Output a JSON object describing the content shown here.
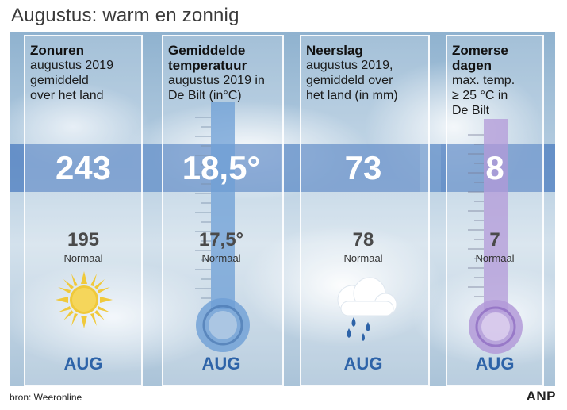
{
  "title": "Augustus: warm en zonnig",
  "columns": [
    {
      "heading": "Zonuren",
      "sub_lines": [
        "augustus 2019",
        "gemiddeld",
        "over het land"
      ],
      "value": "243",
      "normal_value": "195",
      "normal_label": "Normaal",
      "month": "AUG",
      "icon": "sun-icon"
    },
    {
      "heading_lines": [
        "Gemiddelde",
        "temperatuur"
      ],
      "sub_lines": [
        "augustus 2019 in",
        "De Bilt (in°C)"
      ],
      "value": "18,5°",
      "normal_value": "17,5°",
      "normal_label": "Normaal",
      "month": "AUG",
      "icon": "thermometer-icon"
    },
    {
      "heading": "Neerslag",
      "sub_lines": [
        "augustus 2019,",
        "gemiddeld over",
        "het land (in mm)"
      ],
      "value": "73",
      "normal_value": "78",
      "normal_label": "Normaal",
      "month": "AUG",
      "icon": "rain-cloud-icon"
    },
    {
      "heading_lines": [
        "Zomerse",
        "dagen"
      ],
      "sub_lines": [
        "max. temp.",
        "≥ 25 °C in",
        "De Bilt"
      ],
      "value": "8",
      "normal_value": "7",
      "normal_label": "Normaal",
      "month": "AUG",
      "icon": "thermometer-icon"
    }
  ],
  "footer": {
    "source": "bron: Weeronline",
    "logo": "ANP"
  },
  "colors": {
    "band": "#4678be",
    "month": "#2d63a8",
    "thermo_blue": "#6e9fd6",
    "thermo_purple": "#b39ad8",
    "sun": "#f0c93a"
  }
}
